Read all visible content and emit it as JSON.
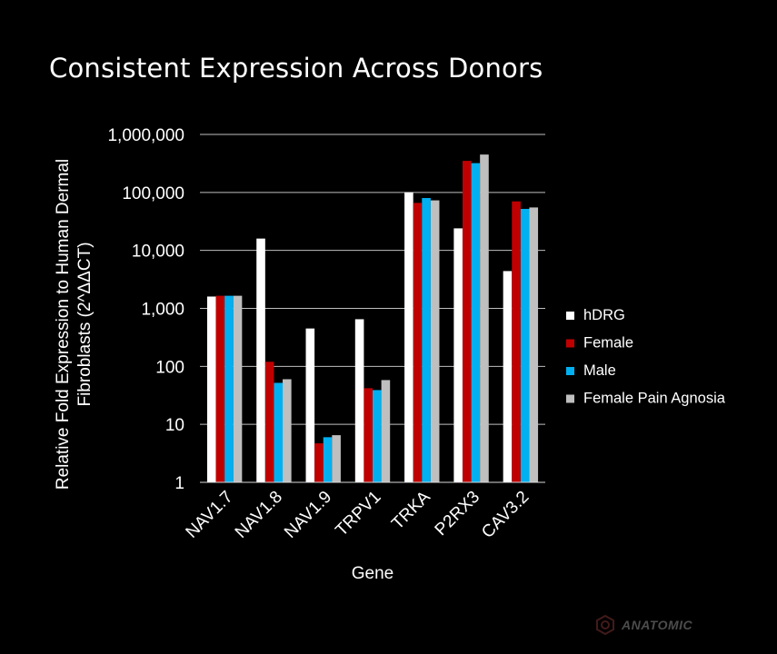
{
  "title": "Consistent Expression Across Donors",
  "logo_text": "ANATOMIC",
  "chart_data": {
    "type": "bar",
    "scale": "log",
    "ylim": [
      1,
      1000000
    ],
    "yticks": [
      "1",
      "10",
      "100",
      "1,000",
      "10,000",
      "100,000",
      "1,000,000"
    ],
    "ytick_values": [
      1,
      10,
      100,
      1000,
      10000,
      100000,
      1000000
    ],
    "xlabel": "Gene",
    "ylabel_line1": "Relative Fold Expression to Human Dermal",
    "ylabel_line2": "Fibroblasts (2^ΔΔCT)",
    "categories": [
      "NAV1.7",
      "NAV1.8",
      "NAV1.9",
      "TRPV1",
      "TRKA",
      "P2RX3",
      "CAV3.2"
    ],
    "grid": true,
    "legend_position": "right",
    "series": [
      {
        "name": "hDRG",
        "color": "#ffffff",
        "values": [
          1600,
          16000,
          450,
          650,
          100000,
          24000,
          4400
        ]
      },
      {
        "name": "Female",
        "color": "#c00000",
        "values": [
          1650,
          120,
          4.7,
          42,
          66000,
          350000,
          70000
        ]
      },
      {
        "name": "Male",
        "color": "#00b0f0",
        "values": [
          1650,
          52,
          6,
          39,
          80000,
          320000,
          52000
        ]
      },
      {
        "name": "Female Pain Agnosia",
        "color": "#bfbfbf",
        "values": [
          1650,
          60,
          6.5,
          58,
          73000,
          450000,
          55000
        ]
      }
    ]
  }
}
